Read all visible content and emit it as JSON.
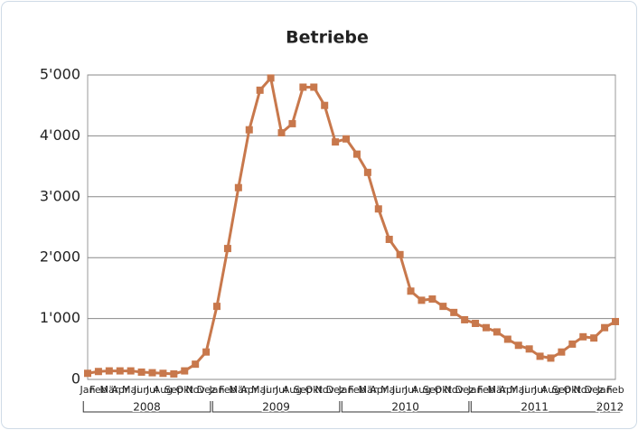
{
  "chart_data": {
    "type": "line",
    "title": "Betriebe",
    "categories": [
      "Jan",
      "Feb",
      "Mär",
      "Apr",
      "Mai",
      "Jun",
      "Jul",
      "Aug",
      "Sep",
      "Okt",
      "Nov",
      "Dez",
      "Jan",
      "Feb",
      "Mär",
      "Apr",
      "Mai",
      "Jun",
      "Jul",
      "Aug",
      "Sep",
      "Okt",
      "Nov",
      "Dez",
      "Jan",
      "Feb",
      "Mär",
      "Apr",
      "Mai",
      "Jun",
      "Jul",
      "Aug",
      "Sep",
      "Okt",
      "Nov",
      "Dez",
      "Jan",
      "Feb",
      "Mär",
      "Apr",
      "Mai",
      "Jun",
      "Jul",
      "Aug",
      "Sep",
      "Okt",
      "Nov",
      "Dez",
      "Jan",
      "Feb"
    ],
    "years": [
      "2008",
      "2009",
      "2010",
      "2011",
      "2012"
    ],
    "series": [
      {
        "name": "Betriebe",
        "color": "#c8784c",
        "values": [
          100,
          130,
          140,
          140,
          140,
          120,
          110,
          100,
          90,
          140,
          250,
          450,
          1200,
          2150,
          3150,
          4100,
          4750,
          4950,
          4050,
          4200,
          4800,
          4800,
          4500,
          3900,
          3950,
          3700,
          3400,
          2800,
          2300,
          2050,
          1450,
          1300,
          1320,
          1200,
          1100,
          980,
          920,
          850,
          780,
          660,
          560,
          500,
          380,
          350,
          450,
          580,
          700,
          680,
          850,
          950
        ]
      }
    ],
    "ylim": [
      0,
      5000
    ],
    "yticks": [
      0,
      {
        "value": 1000,
        "label": "1'000"
      },
      {
        "value": 2000,
        "label": "2'000"
      },
      {
        "value": 3000,
        "label": "3'000"
      },
      {
        "value": 4000,
        "label": "4'000"
      },
      {
        "value": 5000,
        "label": "5'000"
      }
    ],
    "grid": true
  }
}
